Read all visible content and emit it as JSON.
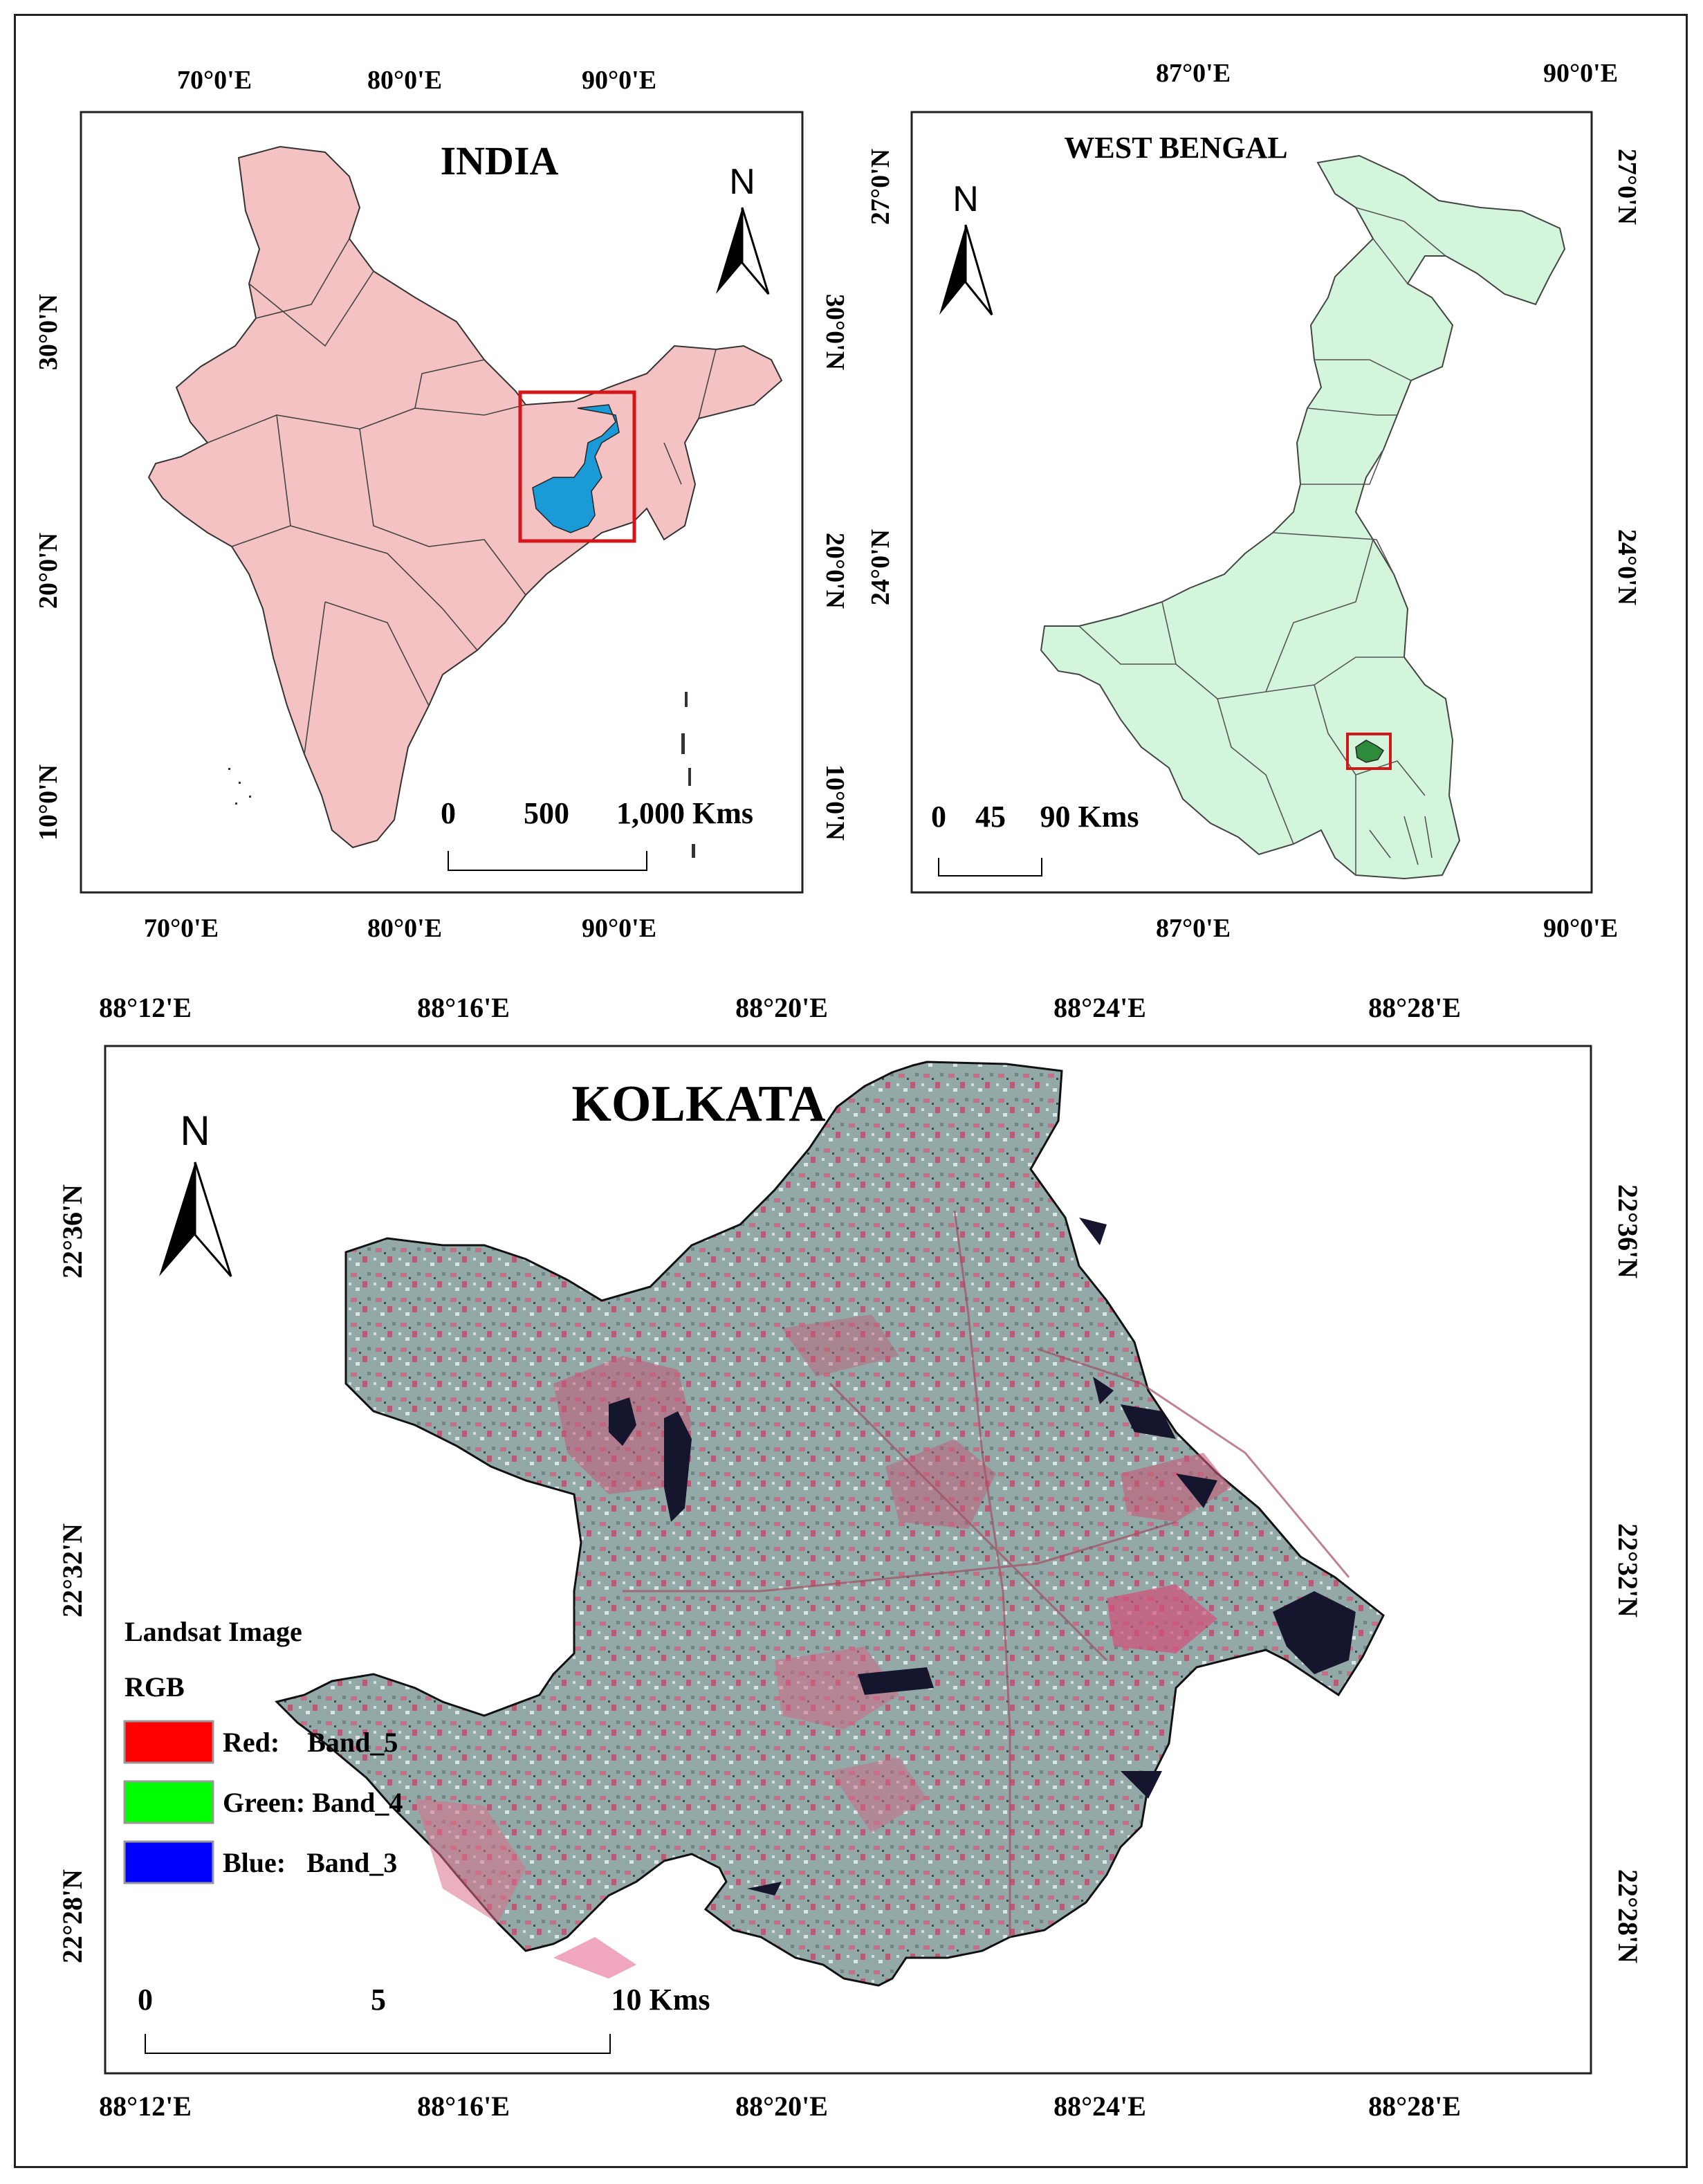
{
  "india": {
    "title": "INDIA",
    "north": "N",
    "top_ticks": [
      "70°0'E",
      "80°0'E",
      "90°0'E"
    ],
    "bottom_ticks": [
      "70°0'E",
      "80°0'E",
      "90°0'E"
    ],
    "left_ticks": [
      "30°0'N",
      "20°0'N",
      "10°0'N"
    ],
    "right_ticks": [
      "30°0'N",
      "20°0'N",
      "10°0'N"
    ],
    "scale": [
      "0",
      "500",
      "1,000 Kms"
    ],
    "colors": {
      "land": "#f4c2c2",
      "west_bengal": "#1a9ad6",
      "highlight": "#d4161a"
    }
  },
  "west_bengal": {
    "title": "WEST BENGAL",
    "north": "N",
    "top_ticks": [
      "87°0'E",
      "90°0'E"
    ],
    "bottom_ticks": [
      "87°0'E",
      "90°0'E"
    ],
    "left_ticks": [
      "27°0'N",
      "24°0'N"
    ],
    "right_ticks": [
      "27°0'N",
      "24°0'N"
    ],
    "scale": [
      "0",
      "45",
      "90 Kms"
    ],
    "colors": {
      "land": "#d2f5dc",
      "kolkata": "#2e8b3c",
      "highlight": "#d4161a"
    }
  },
  "kolkata": {
    "title": "KOLKATA",
    "north": "N",
    "top_ticks": [
      "88°12'E",
      "88°16'E",
      "88°20'E",
      "88°24'E",
      "88°28'E"
    ],
    "bottom_ticks": [
      "88°12'E",
      "88°16'E",
      "88°20'E",
      "88°24'E",
      "88°28'E"
    ],
    "left_ticks": [
      "22°36'N",
      "22°32'N",
      "22°28'N"
    ],
    "right_ticks": [
      "22°36'N",
      "22°32'N",
      "22°28'N"
    ],
    "scale": [
      "0",
      "5",
      "10 Kms"
    ],
    "legend": {
      "title": "Landsat Image",
      "subtitle": "RGB",
      "items": [
        {
          "label": "Red:    Band_5",
          "color": "#ff0000"
        },
        {
          "label": "Green: Band_4",
          "color": "#00ff00"
        },
        {
          "label": "Blue:   Band_3",
          "color": "#0000ff"
        }
      ]
    },
    "colors": {
      "urban": "#8fa5a5",
      "vegetation": "#d0607a",
      "water": "#15152e"
    }
  }
}
